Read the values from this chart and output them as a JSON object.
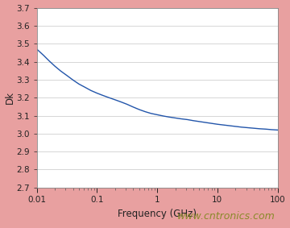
{
  "title": "",
  "xlabel": "Frequency (GHz)",
  "ylabel": "Dk",
  "background_color": "#e8a0a0",
  "plot_bg_color": "#ffffff",
  "xlim": [
    0.01,
    100
  ],
  "ylim": [
    2.7,
    3.7
  ],
  "yticks": [
    2.7,
    2.8,
    2.9,
    3.0,
    3.1,
    3.2,
    3.3,
    3.4,
    3.5,
    3.6,
    3.7
  ],
  "line_color": "#2255aa",
  "watermark_text": "www.cntronics.com",
  "watermark_color": "#8a8a2a",
  "curve_x": [
    0.01,
    0.013,
    0.016,
    0.02,
    0.025,
    0.032,
    0.04,
    0.05,
    0.063,
    0.079,
    0.1,
    0.126,
    0.158,
    0.2,
    0.251,
    0.316,
    0.398,
    0.501,
    0.631,
    0.794,
    1.0,
    1.259,
    1.585,
    1.995,
    2.512,
    3.162,
    3.981,
    5.012,
    6.31,
    7.943,
    10.0,
    12.59,
    15.85,
    19.95,
    25.12,
    31.62,
    39.81,
    50.12,
    63.1,
    79.43,
    100.0
  ],
  "curve_y": [
    3.47,
    3.435,
    3.405,
    3.375,
    3.348,
    3.322,
    3.298,
    3.276,
    3.258,
    3.24,
    3.225,
    3.212,
    3.2,
    3.188,
    3.176,
    3.163,
    3.148,
    3.134,
    3.122,
    3.112,
    3.105,
    3.098,
    3.092,
    3.087,
    3.082,
    3.078,
    3.072,
    3.067,
    3.062,
    3.057,
    3.052,
    3.048,
    3.044,
    3.04,
    3.036,
    3.033,
    3.03,
    3.027,
    3.025,
    3.022,
    3.02
  ]
}
